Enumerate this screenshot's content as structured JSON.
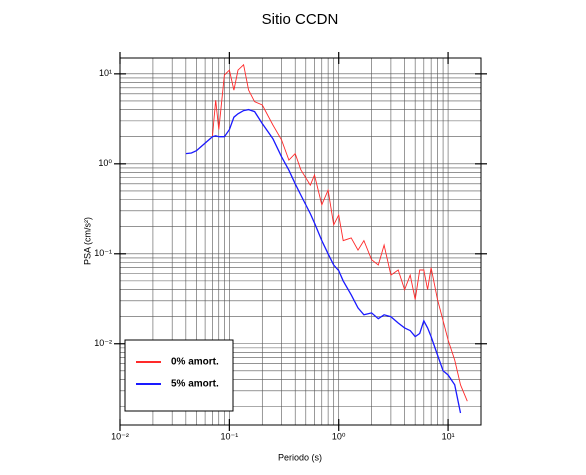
{
  "chart_data": {
    "type": "line",
    "title": "Sitio CCDN",
    "xlabel": "Periodo (s)",
    "ylabel": "PSA (cm/s²)",
    "xscale": "log",
    "yscale": "log",
    "grid": true,
    "legend_position": "lower left",
    "xlim": [
      0.01,
      20
    ],
    "ylim": [
      0.00125,
      15
    ],
    "xticks": [
      {
        "value": 0.01,
        "label": "10⁻²"
      },
      {
        "value": 0.1,
        "label": "10⁻¹"
      },
      {
        "value": 1,
        "label": "10⁰"
      },
      {
        "value": 10,
        "label": "10¹"
      }
    ],
    "yticks": [
      {
        "value": 0.01,
        "label": "10⁻²"
      },
      {
        "value": 0.1,
        "label": "10⁻¹"
      },
      {
        "value": 1,
        "label": "10⁰"
      },
      {
        "value": 10,
        "label": "10¹"
      }
    ],
    "x": [
      0.04,
      0.045,
      0.05,
      0.06,
      0.07,
      0.075,
      0.08,
      0.09,
      0.1,
      0.11,
      0.12,
      0.135,
      0.15,
      0.17,
      0.2,
      0.25,
      0.3,
      0.35,
      0.4,
      0.45,
      0.55,
      0.6,
      0.7,
      0.8,
      0.9,
      1.0,
      1.1,
      1.3,
      1.5,
      1.7,
      2.0,
      2.3,
      2.6,
      3.0,
      3.5,
      4.0,
      4.5,
      5.0,
      5.5,
      6.0,
      6.5,
      7.0,
      8.0,
      9.0,
      10,
      11.5,
      13,
      15
    ],
    "series": [
      {
        "name": "0% amort.",
        "color": "#ff2a2a",
        "values": [
          null,
          null,
          1.4,
          1.7,
          2.0,
          5.1,
          2.4,
          9.7,
          11,
          6.6,
          11,
          12.6,
          6.6,
          4.9,
          4.5,
          2.7,
          1.85,
          1.1,
          1.3,
          0.86,
          0.58,
          0.75,
          0.35,
          0.51,
          0.21,
          0.27,
          0.14,
          0.15,
          0.11,
          0.14,
          0.086,
          0.075,
          0.125,
          0.058,
          0.066,
          0.04,
          0.058,
          0.031,
          0.066,
          0.066,
          0.04,
          0.07,
          0.031,
          0.018,
          0.011,
          0.0066,
          0.0035,
          0.0023
        ]
      },
      {
        "name": "5% amort.",
        "color": "#1a1aff",
        "values": [
          1.3,
          1.32,
          1.4,
          1.7,
          2.0,
          2.05,
          2.0,
          2.0,
          2.4,
          3.3,
          3.6,
          3.9,
          4.0,
          3.8,
          2.8,
          1.9,
          1.2,
          0.85,
          0.6,
          0.45,
          0.28,
          0.22,
          0.14,
          0.1,
          0.075,
          0.065,
          0.05,
          0.035,
          0.025,
          0.021,
          0.022,
          0.019,
          0.021,
          0.02,
          0.017,
          0.015,
          0.014,
          0.012,
          0.013,
          0.018,
          0.015,
          0.012,
          0.0075,
          0.005,
          0.0045,
          0.0035,
          0.0017,
          null
        ]
      }
    ]
  }
}
